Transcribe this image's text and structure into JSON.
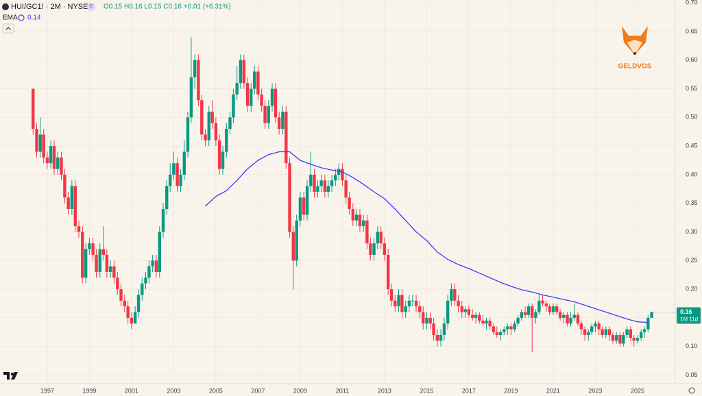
{
  "header": {
    "symbol": "HUI/GC1! · 2M · NYSE",
    "badge": "E",
    "legend_text": "O0.15 H0.16 L0.15 C0.16 +0.01 (+6.31%)"
  },
  "watermark": "GELDVOS",
  "chart_data": {
    "type": "candlestick",
    "title": "HUI/GC1! · 2M · NYSE",
    "up_color": "#089981",
    "down_color": "#f23645",
    "xlim": [
      1994.76,
      2026.79
    ],
    "ylim": [
      0.035,
      0.705
    ],
    "xticks": [
      1997,
      1999,
      2001,
      2003,
      2005,
      2007,
      2009,
      2011,
      2013,
      2015,
      2017,
      2019,
      2021,
      2023,
      2025
    ],
    "yticks": [
      0.05,
      {
        "value": 0.1,
        "label": "0.10"
      },
      0.15,
      {
        "value": 0.2,
        "label": "0.20"
      },
      0.25,
      {
        "value": 0.3,
        "label": "0.30"
      },
      0.35,
      {
        "value": 0.4,
        "label": "0.40"
      },
      0.45,
      {
        "value": 0.5,
        "label": "0.50"
      },
      0.55,
      {
        "value": 0.6,
        "label": "0.60"
      },
      0.65,
      {
        "value": 0.7,
        "label": "0.70"
      }
    ],
    "grid": true,
    "x": [
      1996.33,
      1996.5,
      1996.67,
      1996.83,
      1997,
      1997.17,
      1997.33,
      1997.5,
      1997.67,
      1997.83,
      1998,
      1998.17,
      1998.33,
      1998.5,
      1998.67,
      1998.83,
      1999,
      1999.17,
      1999.33,
      1999.5,
      1999.67,
      1999.83,
      2000,
      2000.17,
      2000.33,
      2000.5,
      2000.67,
      2000.83,
      2001,
      2001.17,
      2001.33,
      2001.5,
      2001.67,
      2001.83,
      2002,
      2002.17,
      2002.33,
      2002.5,
      2002.67,
      2002.83,
      2003,
      2003.17,
      2003.33,
      2003.5,
      2003.67,
      2003.83,
      2004,
      2004.17,
      2004.33,
      2004.5,
      2004.67,
      2004.83,
      2005,
      2005.17,
      2005.33,
      2005.5,
      2005.67,
      2005.83,
      2006,
      2006.17,
      2006.33,
      2006.5,
      2006.67,
      2006.83,
      2007,
      2007.17,
      2007.33,
      2007.5,
      2007.67,
      2007.83,
      2008,
      2008.17,
      2008.33,
      2008.5,
      2008.67,
      2008.83,
      2009,
      2009.17,
      2009.33,
      2009.5,
      2009.67,
      2009.83,
      2010,
      2010.17,
      2010.33,
      2010.5,
      2010.67,
      2010.83,
      2011,
      2011.17,
      2011.33,
      2011.5,
      2011.67,
      2011.83,
      2012,
      2012.17,
      2012.33,
      2012.5,
      2012.67,
      2012.83,
      2013,
      2013.17,
      2013.33,
      2013.5,
      2013.67,
      2013.83,
      2014,
      2014.17,
      2014.33,
      2014.5,
      2014.67,
      2014.83,
      2015,
      2015.17,
      2015.33,
      2015.5,
      2015.67,
      2015.83,
      2016,
      2016.17,
      2016.33,
      2016.5,
      2016.67,
      2016.83,
      2017,
      2017.17,
      2017.33,
      2017.5,
      2017.67,
      2017.83,
      2018,
      2018.17,
      2018.33,
      2018.5,
      2018.67,
      2018.83,
      2019,
      2019.17,
      2019.33,
      2019.5,
      2019.67,
      2019.83,
      2020,
      2020.17,
      2020.33,
      2020.5,
      2020.67,
      2020.83,
      2021,
      2021.17,
      2021.33,
      2021.5,
      2021.67,
      2021.83,
      2022,
      2022.17,
      2022.33,
      2022.5,
      2022.67,
      2022.83,
      2023,
      2023.17,
      2023.33,
      2023.5,
      2023.67,
      2023.83,
      2024,
      2024.17,
      2024.33,
      2024.5,
      2024.67,
      2024.83,
      2025,
      2025.17,
      2025.33,
      2025.5,
      2025.67
    ],
    "ohlc": [
      [
        0.55,
        0.55,
        0.47,
        0.48
      ],
      [
        0.48,
        0.49,
        0.43,
        0.44
      ],
      [
        0.44,
        0.5,
        0.43,
        0.47
      ],
      [
        0.47,
        0.48,
        0.42,
        0.43
      ],
      [
        0.43,
        0.44,
        0.41,
        0.42
      ],
      [
        0.42,
        0.46,
        0.41,
        0.45
      ],
      [
        0.45,
        0.46,
        0.4,
        0.41
      ],
      [
        0.41,
        0.44,
        0.4,
        0.43
      ],
      [
        0.43,
        0.44,
        0.39,
        0.4
      ],
      [
        0.4,
        0.41,
        0.35,
        0.36
      ],
      [
        0.36,
        0.37,
        0.33,
        0.34
      ],
      [
        0.34,
        0.39,
        0.33,
        0.38
      ],
      [
        0.38,
        0.39,
        0.3,
        0.31
      ],
      [
        0.31,
        0.32,
        0.29,
        0.3
      ],
      [
        0.3,
        0.31,
        0.21,
        0.22
      ],
      [
        0.22,
        0.28,
        0.21,
        0.27
      ],
      [
        0.27,
        0.29,
        0.26,
        0.28
      ],
      [
        0.28,
        0.29,
        0.25,
        0.26
      ],
      [
        0.26,
        0.27,
        0.22,
        0.23
      ],
      [
        0.23,
        0.28,
        0.22,
        0.27
      ],
      [
        0.27,
        0.31,
        0.25,
        0.26
      ],
      [
        0.26,
        0.27,
        0.22,
        0.23
      ],
      [
        0.23,
        0.25,
        0.22,
        0.24
      ],
      [
        0.24,
        0.25,
        0.21,
        0.22
      ],
      [
        0.22,
        0.23,
        0.19,
        0.2
      ],
      [
        0.2,
        0.21,
        0.17,
        0.18
      ],
      [
        0.18,
        0.19,
        0.16,
        0.17
      ],
      [
        0.17,
        0.18,
        0.14,
        0.15
      ],
      [
        0.15,
        0.16,
        0.13,
        0.14
      ],
      [
        0.14,
        0.17,
        0.14,
        0.16
      ],
      [
        0.16,
        0.2,
        0.15,
        0.19
      ],
      [
        0.19,
        0.22,
        0.18,
        0.21
      ],
      [
        0.21,
        0.23,
        0.2,
        0.22
      ],
      [
        0.22,
        0.25,
        0.21,
        0.24
      ],
      [
        0.24,
        0.26,
        0.23,
        0.25
      ],
      [
        0.25,
        0.26,
        0.22,
        0.23
      ],
      [
        0.23,
        0.31,
        0.22,
        0.3
      ],
      [
        0.3,
        0.35,
        0.29,
        0.34
      ],
      [
        0.34,
        0.39,
        0.33,
        0.38
      ],
      [
        0.38,
        0.42,
        0.37,
        0.4
      ],
      [
        0.4,
        0.44,
        0.39,
        0.42
      ],
      [
        0.42,
        0.43,
        0.37,
        0.38
      ],
      [
        0.38,
        0.41,
        0.37,
        0.4
      ],
      [
        0.4,
        0.46,
        0.39,
        0.44
      ],
      [
        0.44,
        0.51,
        0.43,
        0.5
      ],
      [
        0.5,
        0.64,
        0.49,
        0.57
      ],
      [
        0.57,
        0.61,
        0.55,
        0.6
      ],
      [
        0.6,
        0.61,
        0.52,
        0.53
      ],
      [
        0.53,
        0.54,
        0.46,
        0.47
      ],
      [
        0.47,
        0.48,
        0.45,
        0.46
      ],
      [
        0.46,
        0.52,
        0.45,
        0.51
      ],
      [
        0.51,
        0.53,
        0.48,
        0.49
      ],
      [
        0.49,
        0.5,
        0.45,
        0.46
      ],
      [
        0.46,
        0.47,
        0.4,
        0.41
      ],
      [
        0.41,
        0.45,
        0.4,
        0.44
      ],
      [
        0.44,
        0.49,
        0.43,
        0.48
      ],
      [
        0.48,
        0.51,
        0.47,
        0.5
      ],
      [
        0.5,
        0.55,
        0.49,
        0.54
      ],
      [
        0.54,
        0.59,
        0.53,
        0.56
      ],
      [
        0.56,
        0.61,
        0.55,
        0.6
      ],
      [
        0.6,
        0.61,
        0.55,
        0.56
      ],
      [
        0.56,
        0.57,
        0.51,
        0.52
      ],
      [
        0.52,
        0.56,
        0.51,
        0.55
      ],
      [
        0.55,
        0.59,
        0.54,
        0.58
      ],
      [
        0.58,
        0.59,
        0.53,
        0.54
      ],
      [
        0.54,
        0.55,
        0.51,
        0.52
      ],
      [
        0.52,
        0.53,
        0.48,
        0.49
      ],
      [
        0.49,
        0.53,
        0.48,
        0.52
      ],
      [
        0.52,
        0.56,
        0.51,
        0.55
      ],
      [
        0.55,
        0.56,
        0.49,
        0.5
      ],
      [
        0.5,
        0.51,
        0.47,
        0.48
      ],
      [
        0.48,
        0.52,
        0.47,
        0.51
      ],
      [
        0.51,
        0.52,
        0.41,
        0.42
      ],
      [
        0.42,
        0.43,
        0.29,
        0.3
      ],
      [
        0.3,
        0.31,
        0.2,
        0.25
      ],
      [
        0.25,
        0.33,
        0.24,
        0.32
      ],
      [
        0.32,
        0.37,
        0.31,
        0.36
      ],
      [
        0.36,
        0.37,
        0.32,
        0.33
      ],
      [
        0.33,
        0.39,
        0.32,
        0.38
      ],
      [
        0.38,
        0.44,
        0.37,
        0.4
      ],
      [
        0.4,
        0.41,
        0.36,
        0.37
      ],
      [
        0.37,
        0.39,
        0.36,
        0.38
      ],
      [
        0.38,
        0.4,
        0.37,
        0.39
      ],
      [
        0.39,
        0.4,
        0.36,
        0.37
      ],
      [
        0.37,
        0.39,
        0.36,
        0.38
      ],
      [
        0.38,
        0.4,
        0.37,
        0.39
      ],
      [
        0.39,
        0.41,
        0.38,
        0.4
      ],
      [
        0.4,
        0.42,
        0.39,
        0.41
      ],
      [
        0.41,
        0.42,
        0.38,
        0.39
      ],
      [
        0.39,
        0.4,
        0.35,
        0.36
      ],
      [
        0.36,
        0.37,
        0.33,
        0.34
      ],
      [
        0.34,
        0.35,
        0.31,
        0.32
      ],
      [
        0.32,
        0.34,
        0.31,
        0.33
      ],
      [
        0.33,
        0.34,
        0.3,
        0.31
      ],
      [
        0.31,
        0.33,
        0.3,
        0.32
      ],
      [
        0.32,
        0.33,
        0.27,
        0.28
      ],
      [
        0.28,
        0.29,
        0.25,
        0.26
      ],
      [
        0.26,
        0.29,
        0.25,
        0.28
      ],
      [
        0.28,
        0.31,
        0.27,
        0.3
      ],
      [
        0.3,
        0.31,
        0.27,
        0.28
      ],
      [
        0.28,
        0.29,
        0.25,
        0.26
      ],
      [
        0.26,
        0.27,
        0.19,
        0.2
      ],
      [
        0.2,
        0.21,
        0.17,
        0.18
      ],
      [
        0.18,
        0.19,
        0.16,
        0.17
      ],
      [
        0.17,
        0.2,
        0.16,
        0.19
      ],
      [
        0.19,
        0.2,
        0.15,
        0.16
      ],
      [
        0.16,
        0.18,
        0.15,
        0.17
      ],
      [
        0.17,
        0.19,
        0.16,
        0.18
      ],
      [
        0.18,
        0.19,
        0.17,
        0.18
      ],
      [
        0.18,
        0.19,
        0.16,
        0.17
      ],
      [
        0.17,
        0.18,
        0.15,
        0.16
      ],
      [
        0.16,
        0.17,
        0.13,
        0.14
      ],
      [
        0.14,
        0.16,
        0.13,
        0.15
      ],
      [
        0.15,
        0.16,
        0.13,
        0.14
      ],
      [
        0.14,
        0.15,
        0.11,
        0.12
      ],
      [
        0.12,
        0.13,
        0.1,
        0.11
      ],
      [
        0.11,
        0.13,
        0.1,
        0.12
      ],
      [
        0.12,
        0.15,
        0.11,
        0.14
      ],
      [
        0.14,
        0.19,
        0.13,
        0.18
      ],
      [
        0.18,
        0.21,
        0.17,
        0.2
      ],
      [
        0.2,
        0.21,
        0.17,
        0.18
      ],
      [
        0.18,
        0.19,
        0.16,
        0.17
      ],
      [
        0.17,
        0.18,
        0.15,
        0.16
      ],
      [
        0.16,
        0.17,
        0.15,
        0.165
      ],
      [
        0.165,
        0.17,
        0.15,
        0.155
      ],
      [
        0.155,
        0.165,
        0.145,
        0.15
      ],
      [
        0.15,
        0.16,
        0.14,
        0.155
      ],
      [
        0.155,
        0.16,
        0.14,
        0.145
      ],
      [
        0.145,
        0.155,
        0.135,
        0.14
      ],
      [
        0.14,
        0.15,
        0.13,
        0.145
      ],
      [
        0.145,
        0.15,
        0.13,
        0.135
      ],
      [
        0.135,
        0.14,
        0.12,
        0.125
      ],
      [
        0.125,
        0.135,
        0.115,
        0.12
      ],
      [
        0.12,
        0.13,
        0.11,
        0.125
      ],
      [
        0.125,
        0.135,
        0.12,
        0.13
      ],
      [
        0.13,
        0.14,
        0.12,
        0.135
      ],
      [
        0.135,
        0.14,
        0.12,
        0.13
      ],
      [
        0.13,
        0.145,
        0.125,
        0.14
      ],
      [
        0.14,
        0.155,
        0.135,
        0.15
      ],
      [
        0.15,
        0.165,
        0.145,
        0.16
      ],
      [
        0.16,
        0.17,
        0.15,
        0.155
      ],
      [
        0.155,
        0.175,
        0.15,
        0.17
      ],
      [
        0.17,
        0.175,
        0.09,
        0.15
      ],
      [
        0.15,
        0.165,
        0.14,
        0.16
      ],
      [
        0.16,
        0.19,
        0.155,
        0.18
      ],
      [
        0.18,
        0.19,
        0.17,
        0.175
      ],
      [
        0.175,
        0.18,
        0.16,
        0.17
      ],
      [
        0.17,
        0.175,
        0.155,
        0.16
      ],
      [
        0.16,
        0.175,
        0.155,
        0.17
      ],
      [
        0.17,
        0.175,
        0.155,
        0.16
      ],
      [
        0.16,
        0.165,
        0.145,
        0.15
      ],
      [
        0.15,
        0.16,
        0.14,
        0.155
      ],
      [
        0.155,
        0.16,
        0.135,
        0.14
      ],
      [
        0.14,
        0.16,
        0.135,
        0.15
      ],
      [
        0.15,
        0.175,
        0.145,
        0.155
      ],
      [
        0.155,
        0.16,
        0.135,
        0.14
      ],
      [
        0.14,
        0.145,
        0.12,
        0.13
      ],
      [
        0.13,
        0.135,
        0.11,
        0.12
      ],
      [
        0.12,
        0.13,
        0.11,
        0.125
      ],
      [
        0.125,
        0.14,
        0.12,
        0.135
      ],
      [
        0.135,
        0.145,
        0.125,
        0.14
      ],
      [
        0.14,
        0.145,
        0.12,
        0.13
      ],
      [
        0.13,
        0.135,
        0.115,
        0.12
      ],
      [
        0.12,
        0.135,
        0.115,
        0.13
      ],
      [
        0.13,
        0.135,
        0.11,
        0.12
      ],
      [
        0.12,
        0.125,
        0.105,
        0.11
      ],
      [
        0.11,
        0.125,
        0.105,
        0.12
      ],
      [
        0.12,
        0.125,
        0.1,
        0.105
      ],
      [
        0.105,
        0.125,
        0.1,
        0.12
      ],
      [
        0.12,
        0.135,
        0.115,
        0.13
      ],
      [
        0.13,
        0.135,
        0.11,
        0.115
      ],
      [
        0.115,
        0.12,
        0.1,
        0.11
      ],
      [
        0.11,
        0.12,
        0.105,
        0.115
      ],
      [
        0.115,
        0.13,
        0.11,
        0.125
      ],
      [
        0.125,
        0.135,
        0.115,
        0.13
      ],
      [
        0.13,
        0.155,
        0.125,
        0.15
      ],
      [
        0.15,
        0.16,
        0.15,
        0.16
      ]
    ],
    "series": [
      {
        "name": "EMA",
        "color": "#3c3cf5",
        "legend_value": 0.14,
        "x": [
          2004.5,
          2005,
          2005.5,
          2006,
          2006.5,
          2007,
          2007.5,
          2008,
          2008.5,
          2009,
          2009.5,
          2010,
          2010.5,
          2011,
          2011.5,
          2012,
          2012.5,
          2013,
          2013.5,
          2014,
          2014.5,
          2015,
          2015.5,
          2016,
          2016.5,
          2017,
          2017.5,
          2018,
          2018.5,
          2019,
          2019.5,
          2020,
          2020.5,
          2021,
          2021.5,
          2022,
          2022.5,
          2023,
          2023.5,
          2024,
          2024.5,
          2025,
          2025.5
        ],
        "values": [
          0.345,
          0.362,
          0.372,
          0.39,
          0.41,
          0.425,
          0.435,
          0.44,
          0.44,
          0.425,
          0.418,
          0.412,
          0.408,
          0.405,
          0.395,
          0.383,
          0.37,
          0.358,
          0.34,
          0.32,
          0.3,
          0.285,
          0.265,
          0.252,
          0.243,
          0.236,
          0.228,
          0.22,
          0.212,
          0.205,
          0.199,
          0.195,
          0.19,
          0.186,
          0.182,
          0.178,
          0.172,
          0.166,
          0.16,
          0.154,
          0.148,
          0.143,
          0.142
        ]
      }
    ],
    "last_price": 0.16,
    "countdown": "1M 11d"
  }
}
